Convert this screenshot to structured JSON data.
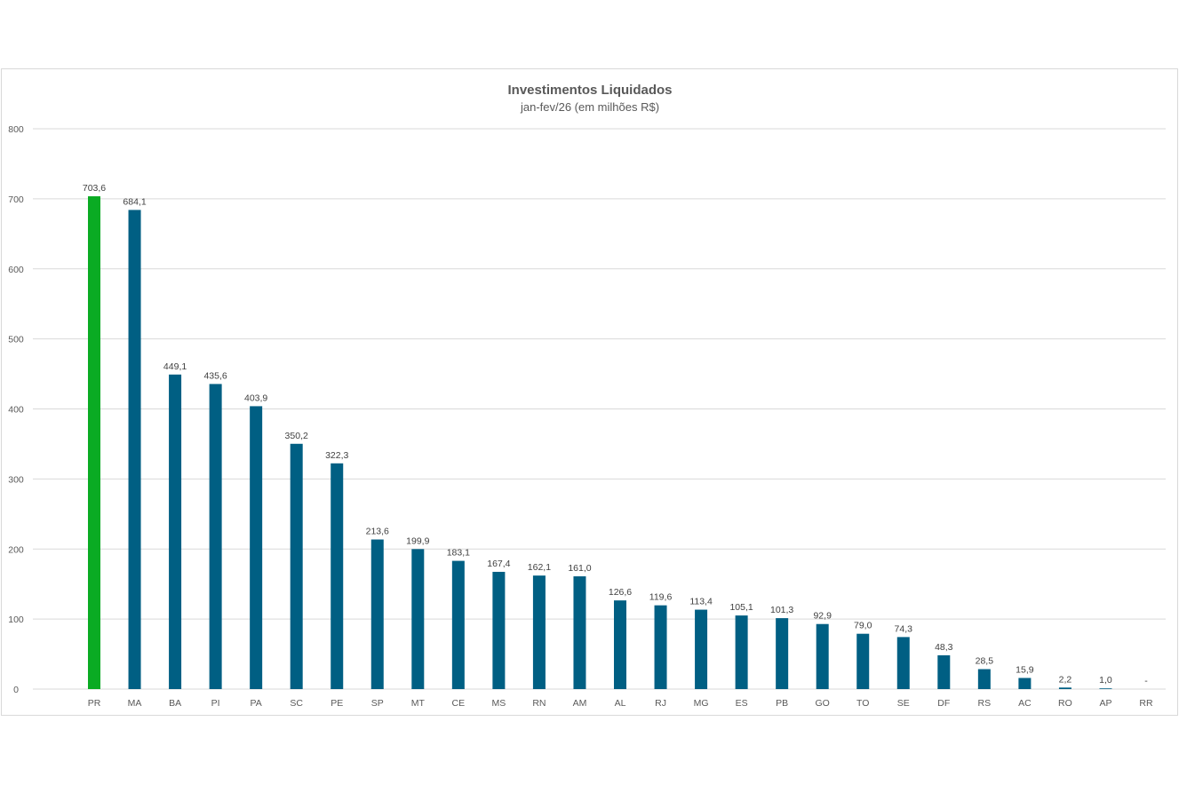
{
  "chart_data": {
    "type": "bar",
    "title": "Investimentos Liquidados",
    "subtitle": "jan-fev/26 (em milhões R$)",
    "xlabel": "",
    "ylabel": "",
    "ylim": [
      0,
      800
    ],
    "yticks": [
      0,
      100,
      200,
      300,
      400,
      500,
      600,
      700,
      800
    ],
    "grid": true,
    "legend": "none",
    "categories": [
      "PR",
      "MA",
      "BA",
      "PI",
      "PA",
      "SC",
      "PE",
      "SP",
      "MT",
      "CE",
      "MS",
      "RN",
      "AM",
      "AL",
      "RJ",
      "MG",
      "ES",
      "PB",
      "GO",
      "TO",
      "SE",
      "DF",
      "RS",
      "AC",
      "RO",
      "AP",
      "RR"
    ],
    "values": [
      703.6,
      684.1,
      449.1,
      435.6,
      403.9,
      350.2,
      322.3,
      213.6,
      199.9,
      183.1,
      167.4,
      162.1,
      161.0,
      126.6,
      119.6,
      113.4,
      105.1,
      101.3,
      92.9,
      79.0,
      74.3,
      48.3,
      28.5,
      15.9,
      2.2,
      1.0,
      0
    ],
    "data_labels": [
      "703,6",
      "684,1",
      "449,1",
      "435,6",
      "403,9",
      "350,2",
      "322,3",
      "213,6",
      "199,9",
      "183,1",
      "167,4",
      "162,1",
      "161,0",
      "126,6",
      "119,6",
      "113,4",
      "105,1",
      "101,3",
      "92,9",
      "79,0",
      "74,3",
      "48,3",
      "28,5",
      "15,9",
      "2,2",
      "1,0",
      "-"
    ],
    "colors": {
      "highlight": "#0aab23",
      "default": "#005f83",
      "highlight_category": "PR"
    }
  }
}
